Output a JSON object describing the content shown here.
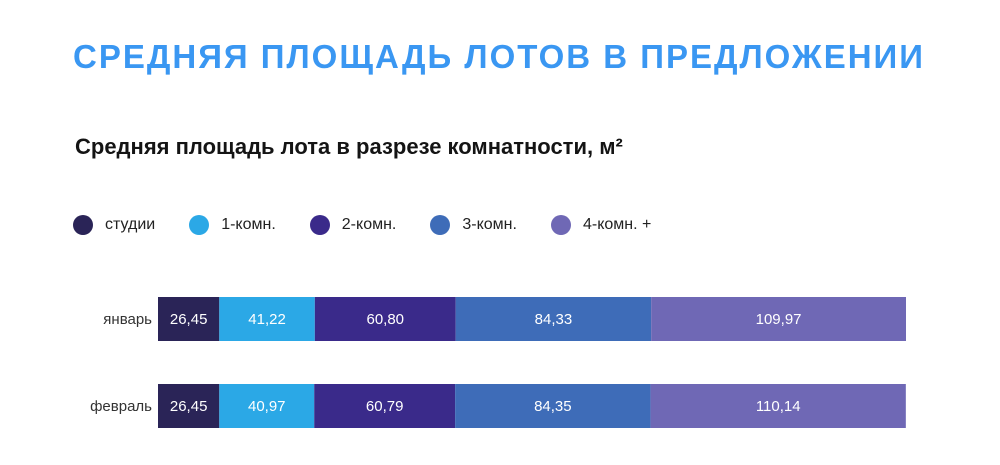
{
  "header": {
    "title": "СРЕДНЯЯ ПЛОЩАДЬ ЛОТОВ В ПРЕДЛОЖЕНИИ"
  },
  "chart_data": {
    "type": "bar",
    "orientation": "horizontal",
    "stacked": true,
    "title": "Средняя площадь лота в разрезе комнатности, м²",
    "categories": [
      "январь",
      "февраль"
    ],
    "series": [
      {
        "name": "студии",
        "color": "#2a2457",
        "values": [
          26.45,
          26.45
        ],
        "labels": [
          "26,45",
          "26,45"
        ]
      },
      {
        "name": "1-комн.",
        "color": "#2ba8e6",
        "values": [
          41.22,
          40.97
        ],
        "labels": [
          "41,22",
          "40,97"
        ]
      },
      {
        "name": "2-комн.",
        "color": "#3a2a8a",
        "values": [
          60.8,
          60.79
        ],
        "labels": [
          "60,80",
          "60,79"
        ]
      },
      {
        "name": "3-комн.",
        "color": "#3e6cb8",
        "values": [
          84.33,
          84.35
        ],
        "labels": [
          "84,33",
          "84,35"
        ]
      },
      {
        "name": "4-комн. +",
        "color": "#6f68b5",
        "values": [
          109.97,
          110.14
        ],
        "labels": [
          "109,97",
          "110,14"
        ]
      }
    ],
    "legend_position": "top-left",
    "grid": false
  }
}
